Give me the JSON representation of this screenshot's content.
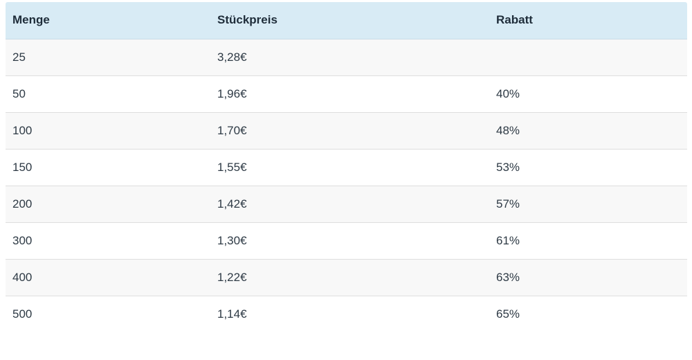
{
  "table": {
    "headers": [
      "Menge",
      "Stückpreis",
      "Rabatt"
    ],
    "rows": [
      [
        "25",
        "3,28€",
        ""
      ],
      [
        "50",
        "1,96€",
        "40%"
      ],
      [
        "100",
        "1,70€",
        "48%"
      ],
      [
        "150",
        "1,55€",
        "53%"
      ],
      [
        "200",
        "1,42€",
        "57%"
      ],
      [
        "300",
        "1,30€",
        "61%"
      ],
      [
        "400",
        "1,22€",
        "63%"
      ],
      [
        "500",
        "1,14€",
        "65%"
      ]
    ]
  },
  "colors": {
    "header_background": "#d8ebf5",
    "row_stripe": "#f8f8f8",
    "text": "#2e3a45"
  }
}
